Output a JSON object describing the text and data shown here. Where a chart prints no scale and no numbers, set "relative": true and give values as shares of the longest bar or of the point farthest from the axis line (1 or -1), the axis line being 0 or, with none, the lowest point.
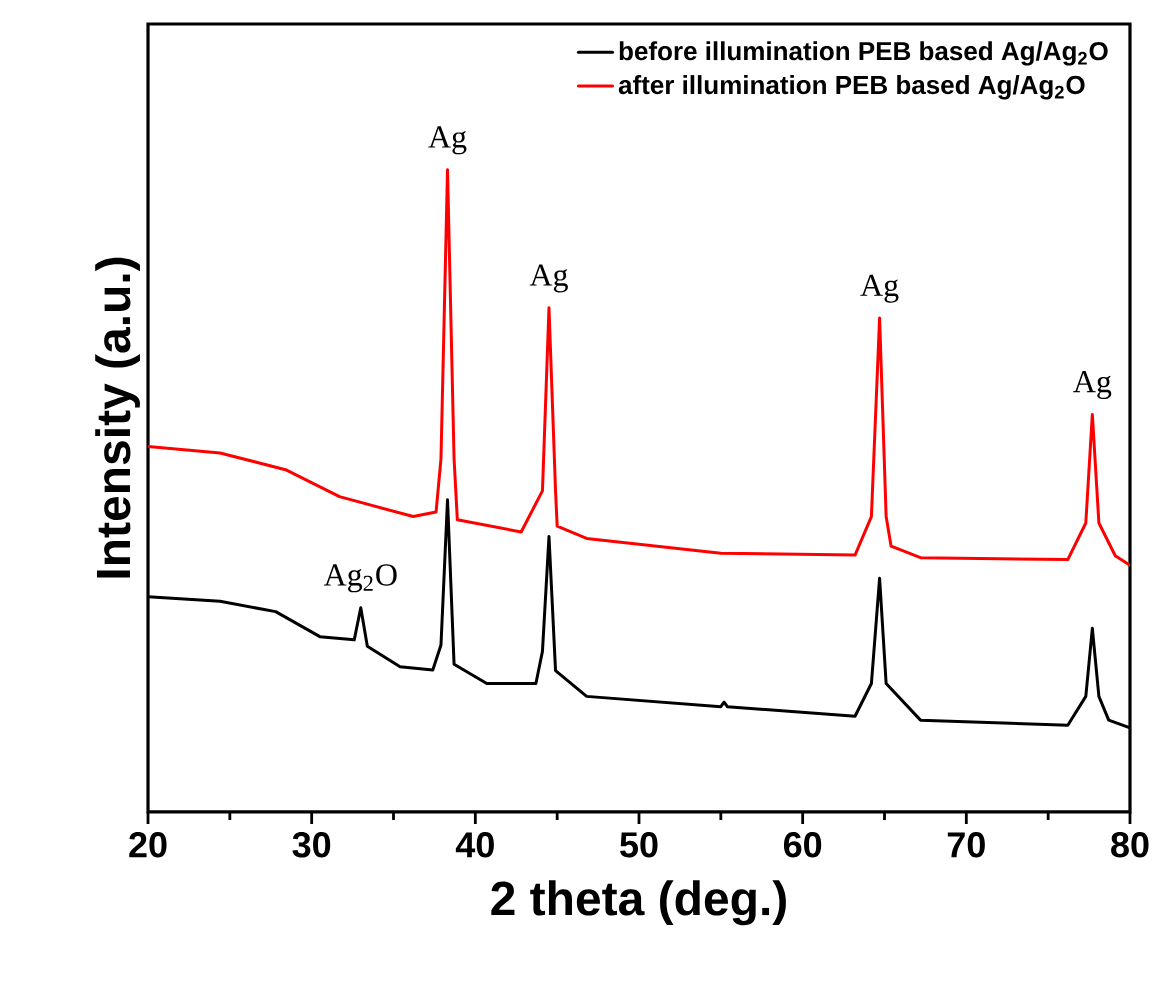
{
  "chart_data": {
    "type": "line",
    "relative": true,
    "xlabel": "2 theta (deg.)",
    "ylabel": "Intensity (a.u.)",
    "xlim": [
      20,
      80
    ],
    "xticks": [
      20,
      30,
      40,
      50,
      60,
      70,
      80
    ],
    "legend": "top right",
    "grid": false,
    "marker": "none",
    "line_style": "solid",
    "series": [
      {
        "name": "before illumination PEB based Ag/Ag$_{2}$O",
        "color": "#000000",
        "x": [
          20,
          24.4,
          27.8,
          30.5,
          32.6,
          33.0,
          33.4,
          35.4,
          37.4,
          37.9,
          38.3,
          38.7,
          40.7,
          43.7,
          44.1,
          44.5,
          44.9,
          46.8,
          55.0,
          55.2,
          55.4,
          63.2,
          64.2,
          64.7,
          65.1,
          67.2,
          76.2,
          77.3,
          77.7,
          78.1,
          78.7,
          80
        ],
        "values": [
          0.335,
          0.328,
          0.312,
          0.273,
          0.268,
          0.318,
          0.258,
          0.226,
          0.221,
          0.26,
          0.486,
          0.23,
          0.2,
          0.2,
          0.25,
          0.429,
          0.22,
          0.18,
          0.164,
          0.171,
          0.164,
          0.149,
          0.2,
          0.364,
          0.2,
          0.143,
          0.135,
          0.18,
          0.286,
          0.18,
          0.143,
          0.131
        ]
      },
      {
        "name": "after illumination PEB based Ag/Ag$_{2}$O",
        "color": "#ff0000",
        "x": [
          20,
          24.4,
          28.4,
          31.7,
          36.2,
          37.6,
          37.9,
          38.3,
          38.7,
          38.9,
          42.8,
          44.1,
          44.5,
          44.9,
          45.0,
          46.8,
          55.0,
          63.2,
          64.2,
          64.7,
          65.1,
          65.4,
          67.2,
          76.2,
          77.3,
          77.7,
          78.1,
          79.1,
          80
        ],
        "values": [
          0.569,
          0.559,
          0.533,
          0.491,
          0.46,
          0.467,
          0.55,
          1.0,
          0.55,
          0.455,
          0.436,
          0.5,
          0.785,
          0.5,
          0.445,
          0.426,
          0.403,
          0.4,
          0.46,
          0.769,
          0.46,
          0.414,
          0.396,
          0.393,
          0.45,
          0.619,
          0.45,
          0.399,
          0.384
        ]
      }
    ],
    "annotations": [
      {
        "text": "Ag$_{2}$O",
        "x": 33.0,
        "y": 0.318
      },
      {
        "text": "Ag",
        "x": 38.3,
        "y": 1.0
      },
      {
        "text": "Ag",
        "x": 44.5,
        "y": 0.785
      },
      {
        "text": "Ag",
        "x": 64.7,
        "y": 0.769
      },
      {
        "text": "Ag",
        "x": 77.7,
        "y": 0.619
      }
    ]
  }
}
